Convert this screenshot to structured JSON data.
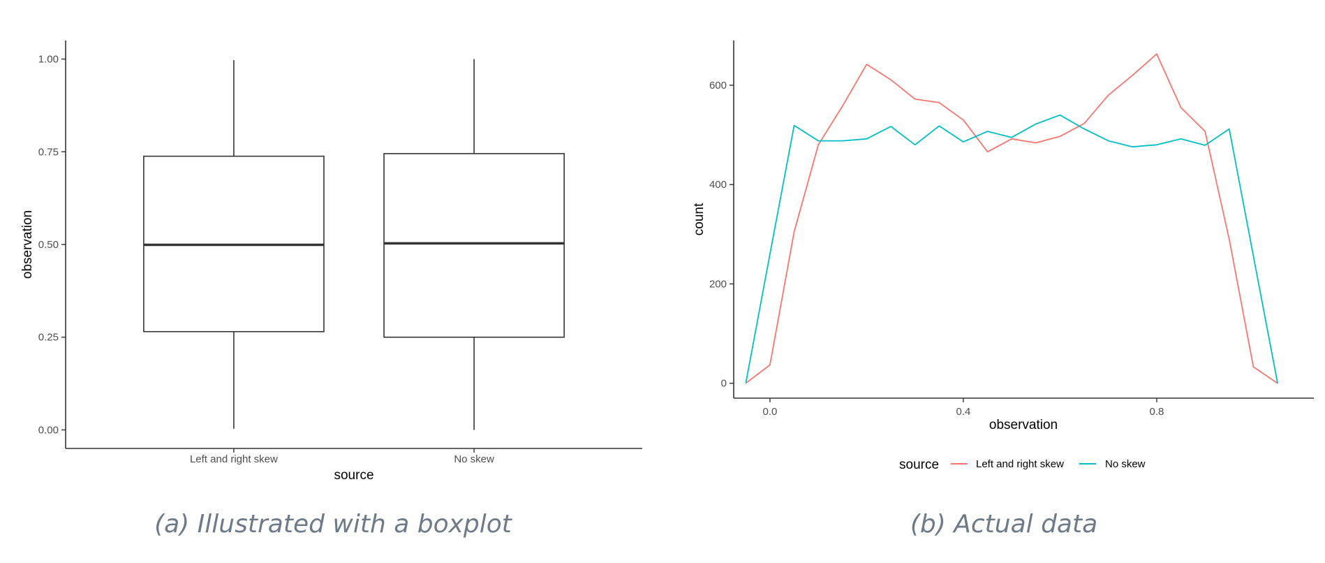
{
  "colors": {
    "left_and_right_skew": "#F8766D",
    "no_skew": "#00BFC4",
    "box_stroke": "#333333",
    "caption": "#6e7a87"
  },
  "panels": [
    {
      "caption": "(a) Illustrated with a boxplot"
    },
    {
      "caption": "(b) Actual data"
    }
  ],
  "chart_data": [
    {
      "type": "boxplot",
      "xlabel": "source",
      "ylabel": "observation",
      "ylim": [
        -0.05,
        1.05
      ],
      "yticks": [
        0.0,
        0.25,
        0.5,
        0.75,
        1.0
      ],
      "ytick_labels": [
        "0.00",
        "0.25",
        "0.50",
        "0.75",
        "1.00"
      ],
      "grid": false,
      "categories": [
        "Left and right skew",
        "No skew"
      ],
      "boxes": [
        {
          "category": "Left and right skew",
          "min": 0.003,
          "q1": 0.265,
          "median": 0.499,
          "q3": 0.738,
          "max": 0.997
        },
        {
          "category": "No skew",
          "min": 0.0,
          "q1": 0.25,
          "median": 0.503,
          "q3": 0.745,
          "max": 1.0
        }
      ]
    },
    {
      "type": "line",
      "xlabel": "observation",
      "ylabel": "count",
      "xlim": [
        -0.075,
        1.125
      ],
      "ylim": [
        -30,
        690
      ],
      "xticks": [
        0.0,
        0.4,
        0.8
      ],
      "xtick_labels": [
        "0.0",
        "0.4",
        "0.8"
      ],
      "yticks": [
        0,
        200,
        400,
        600
      ],
      "ytick_labels": [
        "0",
        "200",
        "400",
        "600"
      ],
      "grid": false,
      "legend": {
        "title": "source",
        "position": "bottom"
      },
      "x": [
        -0.05,
        0.0,
        0.05,
        0.1,
        0.15,
        0.2,
        0.25,
        0.3,
        0.35,
        0.4,
        0.45,
        0.5,
        0.55,
        0.6,
        0.65,
        0.7,
        0.75,
        0.8,
        0.85,
        0.9,
        0.95,
        1.0,
        1.05
      ],
      "series": [
        {
          "name": "Left and right skew",
          "color": "#F8766D",
          "values": [
            0,
            37,
            305,
            480,
            558,
            642,
            611,
            572,
            565,
            530,
            466,
            492,
            484,
            497,
            523,
            580,
            620,
            663,
            555,
            507,
            290,
            33,
            0
          ]
        },
        {
          "name": "No skew",
          "color": "#00BFC4",
          "values": [
            0,
            260,
            519,
            488,
            488,
            492,
            517,
            480,
            518,
            486,
            507,
            495,
            522,
            540,
            512,
            488,
            476,
            480,
            492,
            479,
            512,
            256,
            0
          ]
        }
      ]
    }
  ]
}
